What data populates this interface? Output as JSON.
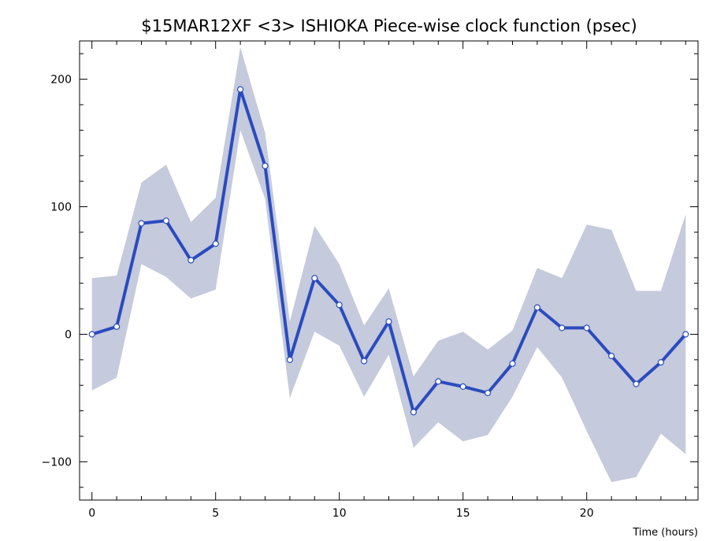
{
  "chart_data": {
    "type": "line",
    "title": "$15MAR12XF <3>  ISHIOKA   Piece-wise clock function (psec)",
    "xlabel": "Time (hours)",
    "ylabel": "",
    "xlim": [
      -0.5,
      24.5
    ],
    "ylim": [
      -130,
      230
    ],
    "x_ticks": [
      0,
      5,
      10,
      15,
      20
    ],
    "x_tick_labels": [
      "0",
      "5",
      "10",
      "15",
      "20"
    ],
    "y_ticks": [
      -100,
      0,
      100,
      200
    ],
    "y_tick_labels": [
      "−100",
      "0",
      "100",
      "200"
    ],
    "grid": false,
    "colors": {
      "line": "#2a4bbf",
      "band": "#c5cadc",
      "marker_fill": "#ffffff"
    },
    "series": [
      {
        "x": [
          0,
          1,
          2,
          3,
          4,
          5,
          6,
          7,
          8,
          9,
          10,
          11,
          12,
          13,
          14,
          15,
          16,
          17,
          18,
          19,
          20,
          21,
          22,
          23,
          24
        ],
        "values": [
          0,
          6,
          87,
          89,
          58,
          71,
          192,
          132,
          -20,
          44,
          23,
          -21,
          10,
          -61,
          -37,
          -41,
          -46,
          -23,
          21,
          5,
          5,
          -17,
          -39,
          -22,
          0
        ],
        "upper": [
          44,
          46,
          119,
          133,
          88,
          107,
          225,
          158,
          10,
          85,
          55,
          7,
          36,
          -33,
          -5,
          2,
          -12,
          3,
          52,
          44,
          86,
          82,
          34,
          34,
          94
        ],
        "lower": [
          -44,
          -34,
          55,
          45,
          28,
          35,
          160,
          106,
          -50,
          2,
          -9,
          -49,
          -16,
          -89,
          -69,
          -84,
          -79,
          -49,
          -10,
          -34,
          -76,
          -116,
          -112,
          -78,
          -94
        ]
      }
    ]
  }
}
